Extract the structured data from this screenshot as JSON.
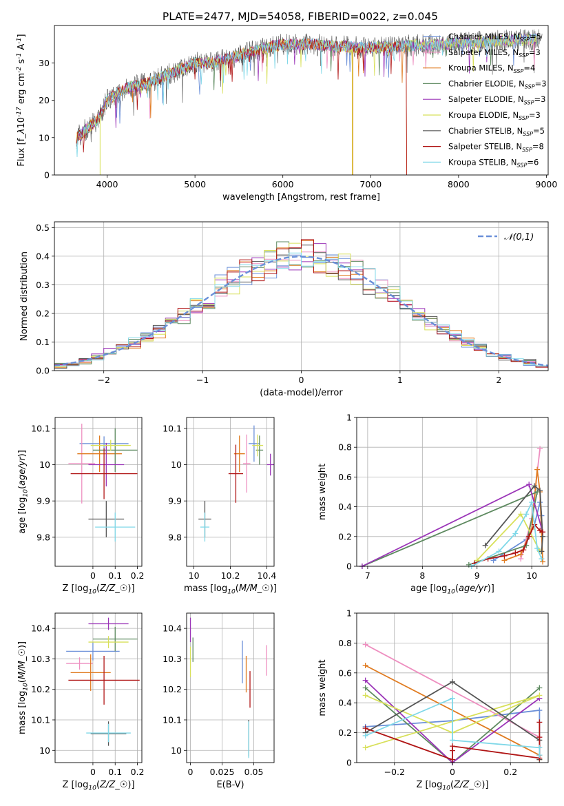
{
  "title": "PLATE=2477, MJD=54058, FIBERID=0022, z=0.045",
  "series_colors": [
    "#6a8fd8",
    "#ee8fc0",
    "#e07b20",
    "#5e8a60",
    "#9b35b8",
    "#d8e05a",
    "#555555",
    "#b01515",
    "#80d8e8"
  ],
  "legend_entries": [
    {
      "name": "Chabrier MILES, N$_{SSP}$=5",
      "color": "#6a8fd8"
    },
    {
      "name": "Salpeter MILES, N$_{SSP}$=3",
      "color": "#ee8fc0"
    },
    {
      "name": "Kroupa MILES, N$_{SSP}$=4",
      "color": "#e07b20"
    },
    {
      "name": "Chabrier ELODIE, N$_{SSP}$=3",
      "color": "#5e8a60"
    },
    {
      "name": "Salpeter ELODIE, N$_{SSP}$=3",
      "color": "#9b35b8"
    },
    {
      "name": "Kroupa ELODIE, N$_{SSP}$=3",
      "color": "#d8e05a"
    },
    {
      "name": "Chabrier STELIB, N$_{SSP}$=5",
      "color": "#555555"
    },
    {
      "name": "Salpeter STELIB, N$_{SSP}$=8",
      "color": "#b01515"
    },
    {
      "name": "Kroupa STELIB, N$_{SSP}$=6",
      "color": "#80d8e8"
    }
  ],
  "chart_data": [
    {
      "id": "spectrum",
      "type": "line",
      "xlabel": "wavelength [Angstrom, rest frame]",
      "ylabel": "Flux [f$_\\lambda$10$^{-17}$ erg cm$^{-2}$ s$^{-1}$ A$^{-1}$]",
      "xlim": [
        3400,
        9020
      ],
      "ylim": [
        0,
        40
      ],
      "xticks": [
        4000,
        5000,
        6000,
        7000,
        8000,
        9000
      ],
      "yticks": [
        0,
        10,
        20,
        30
      ],
      "legend_placement": "right",
      "continuum": {
        "x": [
          3650,
          3750,
          3900,
          4000,
          4200,
          4500,
          4800,
          5000,
          5200,
          5500,
          5800,
          6000,
          6300,
          6600,
          7000,
          7400,
          7800,
          8200,
          8600,
          8950
        ],
        "y": [
          10,
          12,
          15,
          20,
          23,
          25,
          28,
          30,
          30,
          32,
          34,
          35,
          35,
          34.5,
          34,
          34.5,
          35,
          35.5,
          36,
          36.5
        ]
      },
      "spike_x": 6790,
      "cutoff_x": 7410
    },
    {
      "id": "residual_hist",
      "type": "bar",
      "xlabel": "(data-model)/error",
      "ylabel": "Normed distribution",
      "xlim": [
        -2.5,
        2.5
      ],
      "ylim": [
        0,
        0.52
      ],
      "xticks": [
        -2,
        -1,
        0,
        1,
        2
      ],
      "yticks": [
        0.0,
        0.1,
        0.2,
        0.3,
        0.4,
        0.5
      ],
      "grid": true,
      "legend_placement": "top-right",
      "reference_curve": "$\\mathcal{N}(0,1)$",
      "reference_color": "#6a8fd8",
      "bin_width": 0.125
    },
    {
      "id": "age_vs_Z",
      "type": "scatter",
      "xlabel": "Z [log$_{10}$($Z/Z_\\odot$)]",
      "ylabel": "age  [log$_{10}$($age/yr$)]",
      "xlim": [
        -0.17,
        0.22
      ],
      "ylim": [
        9.72,
        10.13
      ],
      "xticks": [
        0.0,
        0.1,
        0.2
      ],
      "yticks": [
        9.8,
        9.9,
        10.0,
        10.1
      ],
      "grid": true,
      "points": [
        {
          "x": 0.05,
          "y": 10.058,
          "xerr": 0.11,
          "yerr": 0.02
        },
        {
          "x": -0.05,
          "y": 10.003,
          "xerr": 0.06,
          "yerr": 0.11
        },
        {
          "x": 0.03,
          "y": 10.03,
          "xerr": 0.1,
          "yerr": 0.05
        },
        {
          "x": 0.1,
          "y": 10.04,
          "xerr": 0.1,
          "yerr": 0.06
        },
        {
          "x": 0.06,
          "y": 10.0,
          "xerr": 0.08,
          "yerr": 0.06
        },
        {
          "x": 0.08,
          "y": 10.053,
          "xerr": 0.09,
          "yerr": 0.015
        },
        {
          "x": 0.06,
          "y": 9.85,
          "xerr": 0.08,
          "yerr": 0.05
        },
        {
          "x": 0.05,
          "y": 9.975,
          "xerr": 0.15,
          "yerr": 0.07
        },
        {
          "x": 0.1,
          "y": 9.828,
          "xerr": 0.09,
          "yerr": 0.04
        }
      ]
    },
    {
      "id": "age_vs_mass",
      "type": "scatter",
      "xlabel": "mass [log$_{10}$($M/M_\\odot$)]",
      "ylabel": "",
      "xlim": [
        9.96,
        10.44
      ],
      "ylim": [
        9.72,
        10.13
      ],
      "xticks": [
        10.0,
        10.2,
        10.4
      ],
      "yticks": [
        9.8,
        9.9,
        10.0,
        10.1
      ],
      "grid": true,
      "points": [
        {
          "x": 10.33,
          "y": 10.058,
          "xerr": 0.03,
          "yerr": 0.05
        },
        {
          "x": 10.29,
          "y": 10.003,
          "xerr": 0.02,
          "yerr": 0.08
        },
        {
          "x": 10.25,
          "y": 10.03,
          "xerr": 0.03,
          "yerr": 0.05
        },
        {
          "x": 10.36,
          "y": 10.04,
          "xerr": 0.02,
          "yerr": 0.04
        },
        {
          "x": 10.42,
          "y": 10.0,
          "xerr": 0.02,
          "yerr": 0.03
        },
        {
          "x": 10.35,
          "y": 10.053,
          "xerr": 0.03,
          "yerr": 0.03
        },
        {
          "x": 10.06,
          "y": 9.85,
          "xerr": 0.035,
          "yerr": 0.05
        },
        {
          "x": 10.23,
          "y": 9.975,
          "xerr": 0.04,
          "yerr": 0.08
        },
        {
          "x": 10.06,
          "y": 9.828,
          "xerr": 0.025,
          "yerr": 0.04
        }
      ]
    },
    {
      "id": "massweight_vs_age",
      "type": "line",
      "xlabel": "age  [log$_{10}$($age/yr$)]",
      "ylabel": "mass weight",
      "xlim": [
        6.8,
        10.3
      ],
      "ylim": [
        0,
        1.0
      ],
      "xticks": [
        7,
        8,
        9,
        10
      ],
      "yticks": [
        0.0,
        0.2,
        0.4,
        0.6,
        0.8,
        1.0
      ],
      "grid": true,
      "series": [
        {
          "x": [
            9.3,
            9.9,
            10.05,
            10.15,
            10.18
          ],
          "y": [
            0.04,
            0.18,
            0.28,
            0.43,
            0.34
          ]
        },
        {
          "x": [
            9.8,
            10.0,
            10.15
          ],
          "y": [
            0.05,
            0.32,
            0.79
          ]
        },
        {
          "x": [
            9.5,
            9.8,
            10.0,
            10.1,
            10.15,
            10.2
          ],
          "y": [
            0.04,
            0.08,
            0.25,
            0.65,
            0.5,
            0.03
          ]
        },
        {
          "x": [
            8.85,
            9.9,
            10.1,
            6.9
          ],
          "y": [
            0.01,
            0.14,
            0.5,
            0.0
          ]
        },
        {
          "x": [
            6.9,
            9.95,
            10.2
          ],
          "y": [
            0.0,
            0.55,
            0.23
          ]
        },
        {
          "x": [
            9.0,
            9.8,
            10.15
          ],
          "y": [
            0.04,
            0.35,
            0.1
          ]
        },
        {
          "x": [
            9.15,
            10.05,
            10.15,
            10.2,
            10.18
          ],
          "y": [
            0.14,
            0.54,
            0.51,
            0.2,
            0.1
          ]
        },
        {
          "x": [
            8.95,
            9.2,
            9.5,
            9.7,
            9.85,
            9.95,
            10.05,
            10.15,
            10.2
          ],
          "y": [
            0.02,
            0.05,
            0.07,
            0.09,
            0.11,
            0.2,
            0.28,
            0.24,
            0.23
          ]
        },
        {
          "x": [
            8.9,
            9.4,
            9.7,
            9.9,
            10.0,
            10.1,
            10.18
          ],
          "y": [
            0.0,
            0.1,
            0.22,
            0.35,
            0.43,
            0.12,
            0.05
          ]
        }
      ]
    },
    {
      "id": "mass_vs_Z",
      "type": "scatter",
      "xlabel": "Z [log$_{10}$($Z/Z_\\odot$)]",
      "ylabel": "mass [log$_{10}$($M/M_\\odot$)]",
      "xlim": [
        -0.17,
        0.22
      ],
      "ylim": [
        9.96,
        10.45
      ],
      "xticks": [
        0.0,
        0.1,
        0.2
      ],
      "yticks": [
        10.0,
        10.1,
        10.2,
        10.3,
        10.4
      ],
      "grid": true,
      "points": [
        {
          "x": 0.0,
          "y": 10.325,
          "xerr": 0.12,
          "yerr": 0.03
        },
        {
          "x": -0.06,
          "y": 10.285,
          "xerr": 0.06,
          "yerr": 0.02
        },
        {
          "x": -0.01,
          "y": 10.255,
          "xerr": 0.09,
          "yerr": 0.06
        },
        {
          "x": 0.1,
          "y": 10.365,
          "xerr": 0.1,
          "yerr": 0.04
        },
        {
          "x": 0.07,
          "y": 10.415,
          "xerr": 0.09,
          "yerr": 0.02
        },
        {
          "x": 0.07,
          "y": 10.355,
          "xerr": 0.09,
          "yerr": 0.02
        },
        {
          "x": 0.07,
          "y": 10.055,
          "xerr": 0.08,
          "yerr": 0.04
        },
        {
          "x": 0.05,
          "y": 10.23,
          "xerr": 0.16,
          "yerr": 0.08
        },
        {
          "x": 0.07,
          "y": 10.057,
          "xerr": 0.1,
          "yerr": 0.03
        }
      ]
    },
    {
      "id": "mass_vs_EBV",
      "type": "scatter",
      "xlabel": "E(B-V)",
      "ylabel": "",
      "xlim": [
        -0.003,
        0.066
      ],
      "ylim": [
        9.96,
        10.45
      ],
      "xticks": [
        0.0,
        0.025,
        0.05
      ],
      "yticks": [
        10.0,
        10.1,
        10.2,
        10.3,
        10.4
      ],
      "grid": true,
      "points": [
        {
          "x": 0.041,
          "y": 10.29,
          "xerr": 0.0,
          "yerr": 0.07
        },
        {
          "x": 0.06,
          "y": 10.295,
          "xerr": 0.0,
          "yerr": 0.05
        },
        {
          "x": 0.044,
          "y": 10.25,
          "xerr": 0.0,
          "yerr": 0.06
        },
        {
          "x": 0.002,
          "y": 10.33,
          "xerr": 0.0,
          "yerr": 0.04
        },
        {
          "x": 0.0,
          "y": 10.395,
          "xerr": 0.0,
          "yerr": 0.04
        },
        {
          "x": 0.0,
          "y": 10.29,
          "xerr": 0.0,
          "yerr": 0.05
        },
        {
          "x": 0.046,
          "y": 10.04,
          "xerr": 0.0,
          "yerr": 0.06
        },
        {
          "x": 0.047,
          "y": 10.2,
          "xerr": 0.0,
          "yerr": 0.06
        },
        {
          "x": 0.046,
          "y": 10.035,
          "xerr": 0.0,
          "yerr": 0.06
        }
      ]
    },
    {
      "id": "massweight_vs_Z",
      "type": "line",
      "xlabel": "Z [log$_{10}$($Z/Z_\\odot$)]",
      "ylabel": "mass weight",
      "xlim": [
        -0.33,
        0.33
      ],
      "ylim": [
        0,
        1.0
      ],
      "xticks": [
        -0.2,
        0.0,
        0.2
      ],
      "yticks": [
        0.0,
        0.2,
        0.4,
        0.6,
        0.8,
        1.0
      ],
      "grid": true,
      "series": [
        {
          "x": [
            -0.3,
            0.0,
            0.3,
            0.3
          ],
          "y": [
            0.24,
            0.28,
            0.35,
            0.05
          ]
        },
        {
          "x": [
            -0.3,
            0.3
          ],
          "y": [
            0.79,
            0.17
          ]
        },
        {
          "x": [
            -0.3,
            0.3,
            0.3
          ],
          "y": [
            0.65,
            0.05,
            0.02
          ]
        },
        {
          "x": [
            -0.3,
            0.0,
            0.3
          ],
          "y": [
            0.5,
            0.0,
            0.5
          ]
        },
        {
          "x": [
            -0.3,
            0.0,
            0.3
          ],
          "y": [
            0.55,
            0.0,
            0.43
          ]
        },
        {
          "x": [
            -0.3,
            0.0,
            0.3,
            -0.3
          ],
          "y": [
            0.45,
            0.2,
            0.45,
            0.1
          ]
        },
        {
          "x": [
            -0.3,
            0.0,
            0.3,
            0.3
          ],
          "y": [
            0.2,
            0.54,
            0.15,
            0.02
          ]
        },
        {
          "x": [
            -0.3,
            0.0,
            0.0,
            0.0,
            0.3,
            0.3,
            0.3
          ],
          "y": [
            0.23,
            0.02,
            0.08,
            0.11,
            0.03,
            0.17,
            0.27
          ]
        },
        {
          "x": [
            -0.3,
            0.0,
            0.0,
            0.3,
            0.3
          ],
          "y": [
            0.18,
            0.43,
            0.15,
            0.1,
            0.05
          ]
        }
      ]
    }
  ]
}
